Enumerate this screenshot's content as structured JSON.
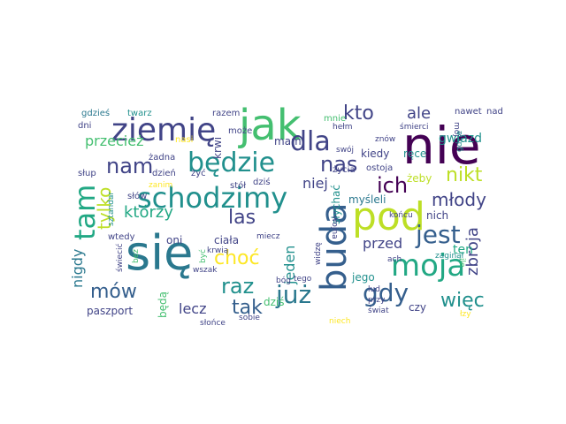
{
  "cloud": {
    "colors": {
      "dark_purple": "#440154",
      "indigo": "#414487",
      "steel_blue": "#355f8d",
      "slate": "#2a788e",
      "teal": "#21908d",
      "sea_green": "#22a884",
      "green": "#44bf70",
      "lime": "#7ad151",
      "yellow": "#bddf26",
      "bright_yellow": "#fde725"
    },
    "words": {
      "nie": "nie",
      "jak": "jak",
      "sie": "się",
      "ziemie": "ziemię",
      "schodzimy": "schodzimy",
      "buda": "buda",
      "pod": "pod",
      "bedzie": "będzie",
      "moja": "moja",
      "jest": "jest",
      "tam": "tam",
      "nam": "nam",
      "dla": "dla",
      "kto": "kto",
      "nas": "nas",
      "ich": "ich",
      "juz": "już",
      "gdy": "gdy",
      "raz": "raz",
      "tak": "tak",
      "mow": "mów",
      "choc": "choć",
      "las": "las",
      "nikt": "nikt",
      "mlody": "młody",
      "wiec": "więc",
      "ktorzy": "którzy",
      "tylko": "tylko",
      "przeciez": "przecież",
      "lecz": "lecz",
      "zbroja": "zbroja",
      "ale": "ale",
      "przed": "przed",
      "jeden": "jeden",
      "niej": "niej",
      "nigdy": "nigdy",
      "gwiazd": "gwiazd",
      "mam": "mam",
      "krwi": "krwi",
      "kiedy": "kiedy",
      "rece": "ręce",
      "myslel": "myśleli",
      "nich": "nich",
      "ten": "ten",
      "zeby": "żeby",
      "slychac": "słychać",
      "czy": "czy",
      "dzis_lg": "dziś",
      "ciala": "ciała",
      "oni": "oni",
      "beda": "będą",
      "paszport": "paszport",
      "jego": "jego",
      "gdzies": "gdzieś",
      "twarz": "twarz",
      "razem": "razem",
      "mnie": "mnie",
      "nawet": "nawet",
      "nad": "nad",
      "dni": "dni",
      "moze": "może",
      "nasi": "nasi",
      "zadna": "żadna",
      "slup": "słup",
      "dzien": "dzień",
      "zyc": "żyć",
      "zanim": "zanim",
      "slow": "słów",
      "stol": "stół",
      "dzis_sm": "dziś",
      "ostoja": "ostoja",
      "zycia": "życia",
      "swoj": "swój",
      "znow": "znów",
      "smierci": "śmierci",
      "helm": "hełm",
      "moj": "mój",
      "gdzie": "gdzie",
      "wojna": "wojna",
      "koncu": "końcu",
      "wtedy": "wtedy",
      "sztandar": "sztandar",
      "miecz": "miecz",
      "krwia": "krwią",
      "byc": "być",
      "bez": "bez",
      "swiecic": "świecić",
      "sobie": "sobie",
      "slonce": "słońce",
      "wszak": "wszak",
      "bog": "bóg",
      "tego": "tego",
      "widze": "widzę",
      "ach": "ach",
      "zaginal": "zaginął",
      "ile": "ile",
      "lud": "lud",
      "przy": "przy",
      "swiat": "świat",
      "niech": "niech",
      "lzy": "łzy"
    }
  }
}
